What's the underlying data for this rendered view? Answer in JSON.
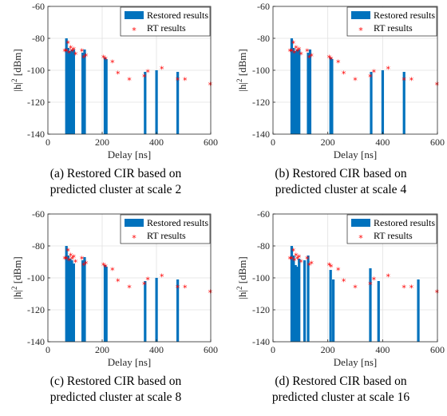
{
  "chart_data": [
    {
      "type": "bar",
      "caption_lines": [
        "(a) Restored CIR based on",
        "predicted cluster at scale 2"
      ],
      "xlabel": "Delay [ns]",
      "ylabel": "|h|",
      "ylabel_exp": "2",
      "ylabel_unit": " [dBm]",
      "xlim": [
        0,
        600
      ],
      "ylim": [
        -140,
        -60
      ],
      "xticks": [
        0,
        200,
        400,
        600
      ],
      "yticks": [
        -140,
        -120,
        -100,
        -80,
        -60
      ],
      "grid": true,
      "legend_position": "top-right",
      "series": [
        {
          "name": "Restored results",
          "kind": "bar",
          "x": [
            68,
            75,
            82,
            88,
            95,
            128,
            135,
            210,
            215,
            358,
            400,
            478
          ],
          "y": [
            -80,
            -86,
            -88,
            -87,
            -87,
            -89,
            -87,
            -92,
            -93,
            -101,
            -100,
            -101
          ]
        },
        {
          "name": "RT results",
          "kind": "point",
          "x": [
            62,
            68,
            74,
            78,
            84,
            89,
            95,
            102,
            125,
            132,
            140,
            205,
            212,
            238,
            258,
            300,
            355,
            368,
            420,
            478,
            505,
            598
          ],
          "y": [
            -88,
            -88,
            -83,
            -89,
            -86,
            -88,
            -87,
            -90,
            -88,
            -92,
            -91,
            -92,
            -93,
            -95,
            -102,
            -106,
            -104,
            -101,
            -99,
            -106,
            -106,
            -109
          ]
        }
      ]
    },
    {
      "type": "bar",
      "caption_lines": [
        "(b) Restored CIR based on",
        "predicted cluster at scale 4"
      ],
      "xlabel": "Delay [ns]",
      "ylabel": "|h|",
      "ylabel_exp": "2",
      "ylabel_unit": " [dBm]",
      "xlim": [
        0,
        600
      ],
      "ylim": [
        -140,
        -60
      ],
      "xticks": [
        0,
        200,
        400,
        600
      ],
      "yticks": [
        -140,
        -120,
        -100,
        -80,
        -60
      ],
      "grid": true,
      "legend_position": "top-right",
      "series": [
        {
          "name": "Restored results",
          "kind": "bar",
          "x": [
            68,
            75,
            82,
            88,
            95,
            128,
            135,
            210,
            215,
            358,
            400,
            478
          ],
          "y": [
            -80,
            -86,
            -88,
            -87,
            -87,
            -89,
            -87,
            -92,
            -93,
            -101,
            -100,
            -101
          ]
        },
        {
          "name": "RT results",
          "kind": "point",
          "x": [
            62,
            68,
            74,
            78,
            84,
            89,
            95,
            102,
            125,
            132,
            140,
            205,
            212,
            238,
            258,
            300,
            355,
            368,
            420,
            478,
            505,
            598
          ],
          "y": [
            -88,
            -88,
            -83,
            -89,
            -86,
            -88,
            -87,
            -90,
            -88,
            -92,
            -91,
            -92,
            -93,
            -95,
            -102,
            -106,
            -104,
            -101,
            -99,
            -106,
            -106,
            -109
          ]
        }
      ]
    },
    {
      "type": "bar",
      "caption_lines": [
        "(c) Restored CIR based on",
        "predicted cluster at scale 8"
      ],
      "xlabel": "Delay [ns]",
      "ylabel": "|h|",
      "ylabel_exp": "2",
      "ylabel_unit": " [dBm]",
      "xlim": [
        0,
        600
      ],
      "ylim": [
        -140,
        -60
      ],
      "xticks": [
        0,
        200,
        400,
        600
      ],
      "yticks": [
        -140,
        -120,
        -100,
        -80,
        -60
      ],
      "grid": true,
      "legend_position": "top-right",
      "series": [
        {
          "name": "Restored results",
          "kind": "bar",
          "x": [
            68,
            75,
            82,
            88,
            95,
            128,
            135,
            210,
            215,
            358,
            400,
            478
          ],
          "y": [
            -80,
            -86,
            -88,
            -89,
            -91,
            -89,
            -87,
            -92,
            -93,
            -102,
            -100,
            -101
          ]
        },
        {
          "name": "RT results",
          "kind": "point",
          "x": [
            62,
            68,
            74,
            78,
            84,
            89,
            95,
            102,
            125,
            132,
            140,
            205,
            212,
            238,
            258,
            300,
            355,
            368,
            420,
            478,
            505,
            598
          ],
          "y": [
            -88,
            -88,
            -83,
            -89,
            -86,
            -88,
            -87,
            -90,
            -88,
            -92,
            -91,
            -92,
            -93,
            -95,
            -102,
            -106,
            -104,
            -101,
            -99,
            -106,
            -106,
            -109
          ]
        }
      ]
    },
    {
      "type": "bar",
      "caption_lines": [
        "(d) Restored CIR based on",
        "predicted cluster at scale 16"
      ],
      "xlabel": "Delay [ns]",
      "ylabel": "|h|",
      "ylabel_exp": "2",
      "ylabel_unit": " [dBm]",
      "xlim": [
        0,
        600
      ],
      "ylim": [
        -140,
        -60
      ],
      "xticks": [
        0,
        200,
        400,
        600
      ],
      "yticks": [
        -140,
        -120,
        -100,
        -80,
        -60
      ],
      "grid": true,
      "legend_position": "top-right",
      "series": [
        {
          "name": "Restored results",
          "kind": "bar",
          "x": [
            68,
            75,
            82,
            88,
            95,
            115,
            128,
            210,
            220,
            355,
            385,
            530
          ],
          "y": [
            -80,
            -86,
            -92,
            -93,
            -88,
            -89,
            -86,
            -95,
            -101,
            -94,
            -102,
            -101
          ]
        },
        {
          "name": "RT results",
          "kind": "point",
          "x": [
            62,
            68,
            74,
            78,
            84,
            89,
            95,
            102,
            125,
            132,
            140,
            205,
            212,
            238,
            258,
            300,
            355,
            368,
            420,
            478,
            505,
            598
          ],
          "y": [
            -88,
            -88,
            -83,
            -89,
            -86,
            -88,
            -87,
            -90,
            -88,
            -92,
            -91,
            -92,
            -93,
            -95,
            -102,
            -106,
            -104,
            -101,
            -99,
            -106,
            -106,
            -109
          ]
        }
      ]
    }
  ],
  "colors": {
    "bar": "#0072bd",
    "point": "#ff0000",
    "grid": "#e1e1e1",
    "axis": "#262626"
  }
}
